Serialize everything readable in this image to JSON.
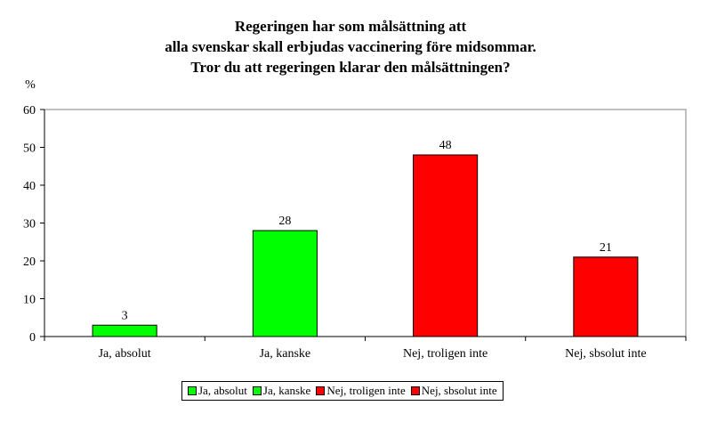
{
  "chart_data": {
    "type": "bar",
    "title_lines": [
      "Regeringen har som målsättning att",
      "alla svenskar skall erbjudas vaccinering före midsommar.",
      "Tror du att regeringen klarar den målsättningen?"
    ],
    "ylabel": "%",
    "xlabel": "",
    "ylim": [
      0,
      60
    ],
    "yticks": [
      "0",
      "10",
      "20",
      "30",
      "40",
      "50",
      "60"
    ],
    "grid": false,
    "legend_position": "bottom",
    "categories": [
      "Ja, absolut",
      "Ja, kanske",
      "Nej, troligen inte",
      "Nej, sbsolut inte"
    ],
    "values": [
      3,
      28,
      48,
      21
    ],
    "data_labels": [
      "3",
      "28",
      "48",
      "21"
    ],
    "colors": [
      "#00ff00",
      "#00ff00",
      "#ff0000",
      "#ff0000"
    ]
  },
  "legend": {
    "items": [
      {
        "label": "Ja, absolut",
        "color": "#00ff00"
      },
      {
        "label": "Ja, kanske",
        "color": "#00ff00"
      },
      {
        "label": "Nej, troligen inte",
        "color": "#ff0000"
      },
      {
        "label": "Nej, sbsolut inte",
        "color": "#ff0000"
      }
    ]
  }
}
